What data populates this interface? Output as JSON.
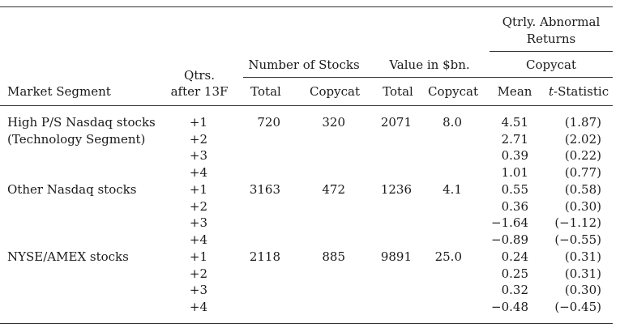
{
  "headers": {
    "qtrly_abnormal_line1": "Qtrly. Abnormal",
    "qtrly_abnormal_line2": "Returns",
    "number_of_stocks": "Number of Stocks",
    "value_in_bn": "Value in $bn.",
    "copycat_group": "Copycat",
    "qtrs_line1": "Qtrs.",
    "qtrs_line2": "after 13F",
    "market_segment": "Market Segment",
    "total_stocks": "Total",
    "copycat_stocks": "Copycat",
    "total_value": "Total",
    "copycat_value": "Copycat",
    "mean": "Mean",
    "t_stat_t": "t",
    "t_stat_rest": "-Statistic"
  },
  "segments": [
    {
      "name_line1": "High P/S Nasdaq stocks",
      "name_line2": "(Technology Segment)",
      "total_stocks": "720",
      "copycat_stocks": "320",
      "total_value": "2071",
      "copycat_value": "8.0",
      "rows": [
        {
          "qtr": "+1",
          "mean": "4.51",
          "tstat": "(1.87)"
        },
        {
          "qtr": "+2",
          "mean": "2.71",
          "tstat": "(2.02)"
        },
        {
          "qtr": "+3",
          "mean": "0.39",
          "tstat": "(0.22)"
        },
        {
          "qtr": "+4",
          "mean": "1.01",
          "tstat": "(0.77)"
        }
      ]
    },
    {
      "name_line1": "Other Nasdaq stocks",
      "name_line2": "",
      "total_stocks": "3163",
      "copycat_stocks": "472",
      "total_value": "1236",
      "copycat_value": "4.1",
      "rows": [
        {
          "qtr": "+1",
          "mean": "0.55",
          "tstat": "(0.58)"
        },
        {
          "qtr": "+2",
          "mean": "0.36",
          "tstat": "(0.30)"
        },
        {
          "qtr": "+3",
          "mean": "−1.64",
          "tstat": "(−1.12)"
        },
        {
          "qtr": "+4",
          "mean": "−0.89",
          "tstat": "(−0.55)"
        }
      ]
    },
    {
      "name_line1": "NYSE/AMEX stocks",
      "name_line2": "",
      "total_stocks": "2118",
      "copycat_stocks": "885",
      "total_value": "9891",
      "copycat_value": "25.0",
      "rows": [
        {
          "qtr": "+1",
          "mean": "0.24",
          "tstat": "(0.31)"
        },
        {
          "qtr": "+2",
          "mean": "0.25",
          "tstat": "(0.31)"
        },
        {
          "qtr": "+3",
          "mean": "0.32",
          "tstat": "(0.30)"
        },
        {
          "qtr": "+4",
          "mean": "−0.48",
          "tstat": "(−0.45)"
        }
      ]
    }
  ]
}
